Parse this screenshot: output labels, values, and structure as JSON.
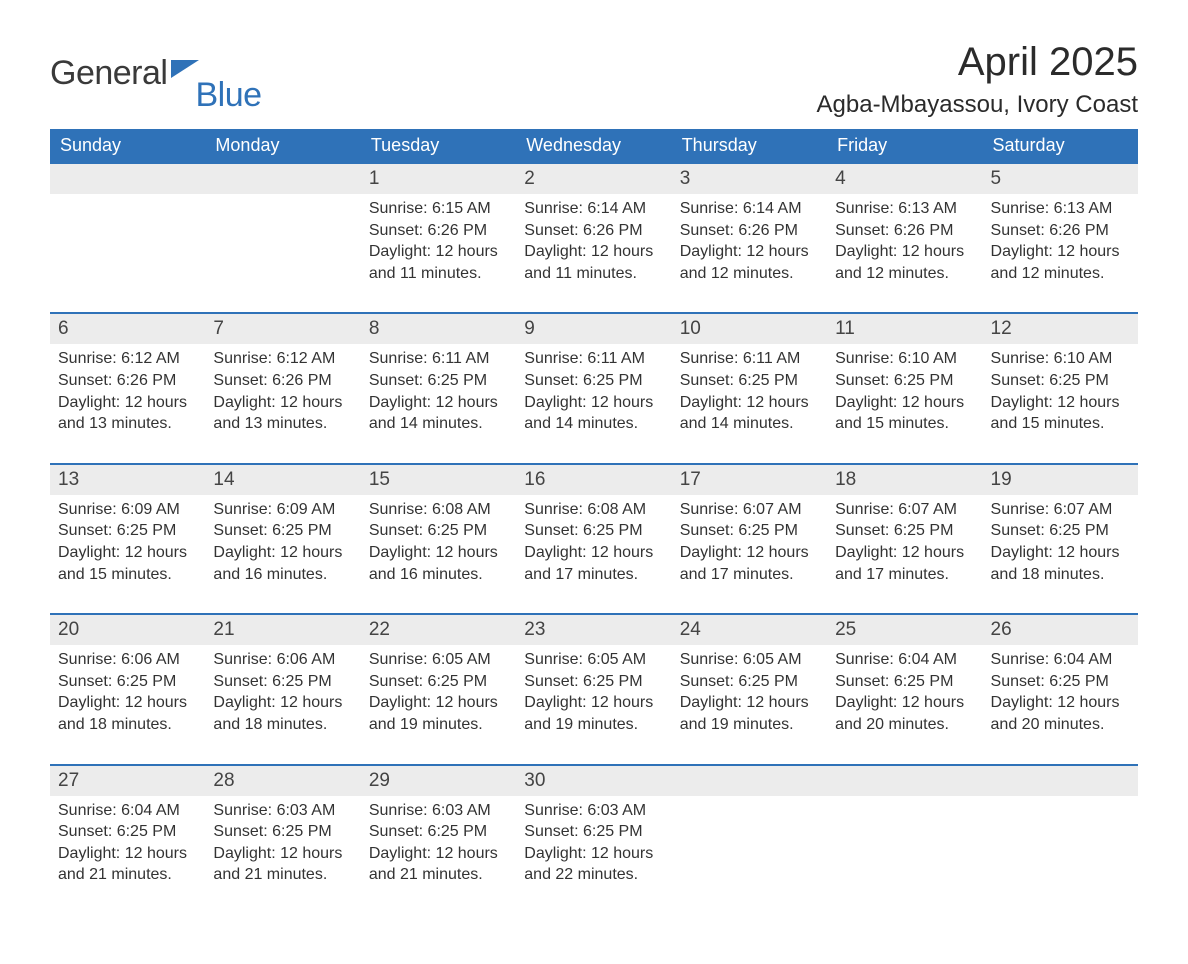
{
  "logo": {
    "word1": "General",
    "word2": "Blue",
    "flag_color": "#2f72b8",
    "text_color": "#3a3a3a"
  },
  "title": "April 2025",
  "subtitle": "Agba-Mbayassou, Ivory Coast",
  "colors": {
    "header_bg": "#2f72b8",
    "header_text": "#ffffff",
    "daynum_bg": "#ececec",
    "row_border": "#2f72b8",
    "body_text": "#333333",
    "background": "#ffffff"
  },
  "typography": {
    "title_fontsize": 40,
    "subtitle_fontsize": 24,
    "header_fontsize": 18,
    "daynum_fontsize": 19,
    "cell_fontsize": 16
  },
  "day_headers": [
    "Sunday",
    "Monday",
    "Tuesday",
    "Wednesday",
    "Thursday",
    "Friday",
    "Saturday"
  ],
  "weeks": [
    [
      null,
      null,
      {
        "n": "1",
        "sunrise": "6:15 AM",
        "sunset": "6:26 PM",
        "daylight": "12 hours and 11 minutes."
      },
      {
        "n": "2",
        "sunrise": "6:14 AM",
        "sunset": "6:26 PM",
        "daylight": "12 hours and 11 minutes."
      },
      {
        "n": "3",
        "sunrise": "6:14 AM",
        "sunset": "6:26 PM",
        "daylight": "12 hours and 12 minutes."
      },
      {
        "n": "4",
        "sunrise": "6:13 AM",
        "sunset": "6:26 PM",
        "daylight": "12 hours and 12 minutes."
      },
      {
        "n": "5",
        "sunrise": "6:13 AM",
        "sunset": "6:26 PM",
        "daylight": "12 hours and 12 minutes."
      }
    ],
    [
      {
        "n": "6",
        "sunrise": "6:12 AM",
        "sunset": "6:26 PM",
        "daylight": "12 hours and 13 minutes."
      },
      {
        "n": "7",
        "sunrise": "6:12 AM",
        "sunset": "6:26 PM",
        "daylight": "12 hours and 13 minutes."
      },
      {
        "n": "8",
        "sunrise": "6:11 AM",
        "sunset": "6:25 PM",
        "daylight": "12 hours and 14 minutes."
      },
      {
        "n": "9",
        "sunrise": "6:11 AM",
        "sunset": "6:25 PM",
        "daylight": "12 hours and 14 minutes."
      },
      {
        "n": "10",
        "sunrise": "6:11 AM",
        "sunset": "6:25 PM",
        "daylight": "12 hours and 14 minutes."
      },
      {
        "n": "11",
        "sunrise": "6:10 AM",
        "sunset": "6:25 PM",
        "daylight": "12 hours and 15 minutes."
      },
      {
        "n": "12",
        "sunrise": "6:10 AM",
        "sunset": "6:25 PM",
        "daylight": "12 hours and 15 minutes."
      }
    ],
    [
      {
        "n": "13",
        "sunrise": "6:09 AM",
        "sunset": "6:25 PM",
        "daylight": "12 hours and 15 minutes."
      },
      {
        "n": "14",
        "sunrise": "6:09 AM",
        "sunset": "6:25 PM",
        "daylight": "12 hours and 16 minutes."
      },
      {
        "n": "15",
        "sunrise": "6:08 AM",
        "sunset": "6:25 PM",
        "daylight": "12 hours and 16 minutes."
      },
      {
        "n": "16",
        "sunrise": "6:08 AM",
        "sunset": "6:25 PM",
        "daylight": "12 hours and 17 minutes."
      },
      {
        "n": "17",
        "sunrise": "6:07 AM",
        "sunset": "6:25 PM",
        "daylight": "12 hours and 17 minutes."
      },
      {
        "n": "18",
        "sunrise": "6:07 AM",
        "sunset": "6:25 PM",
        "daylight": "12 hours and 17 minutes."
      },
      {
        "n": "19",
        "sunrise": "6:07 AM",
        "sunset": "6:25 PM",
        "daylight": "12 hours and 18 minutes."
      }
    ],
    [
      {
        "n": "20",
        "sunrise": "6:06 AM",
        "sunset": "6:25 PM",
        "daylight": "12 hours and 18 minutes."
      },
      {
        "n": "21",
        "sunrise": "6:06 AM",
        "sunset": "6:25 PM",
        "daylight": "12 hours and 18 minutes."
      },
      {
        "n": "22",
        "sunrise": "6:05 AM",
        "sunset": "6:25 PM",
        "daylight": "12 hours and 19 minutes."
      },
      {
        "n": "23",
        "sunrise": "6:05 AM",
        "sunset": "6:25 PM",
        "daylight": "12 hours and 19 minutes."
      },
      {
        "n": "24",
        "sunrise": "6:05 AM",
        "sunset": "6:25 PM",
        "daylight": "12 hours and 19 minutes."
      },
      {
        "n": "25",
        "sunrise": "6:04 AM",
        "sunset": "6:25 PM",
        "daylight": "12 hours and 20 minutes."
      },
      {
        "n": "26",
        "sunrise": "6:04 AM",
        "sunset": "6:25 PM",
        "daylight": "12 hours and 20 minutes."
      }
    ],
    [
      {
        "n": "27",
        "sunrise": "6:04 AM",
        "sunset": "6:25 PM",
        "daylight": "12 hours and 21 minutes."
      },
      {
        "n": "28",
        "sunrise": "6:03 AM",
        "sunset": "6:25 PM",
        "daylight": "12 hours and 21 minutes."
      },
      {
        "n": "29",
        "sunrise": "6:03 AM",
        "sunset": "6:25 PM",
        "daylight": "12 hours and 21 minutes."
      },
      {
        "n": "30",
        "sunrise": "6:03 AM",
        "sunset": "6:25 PM",
        "daylight": "12 hours and 22 minutes."
      },
      null,
      null,
      null
    ]
  ],
  "labels": {
    "sunrise": "Sunrise: ",
    "sunset": "Sunset: ",
    "daylight": "Daylight: "
  }
}
